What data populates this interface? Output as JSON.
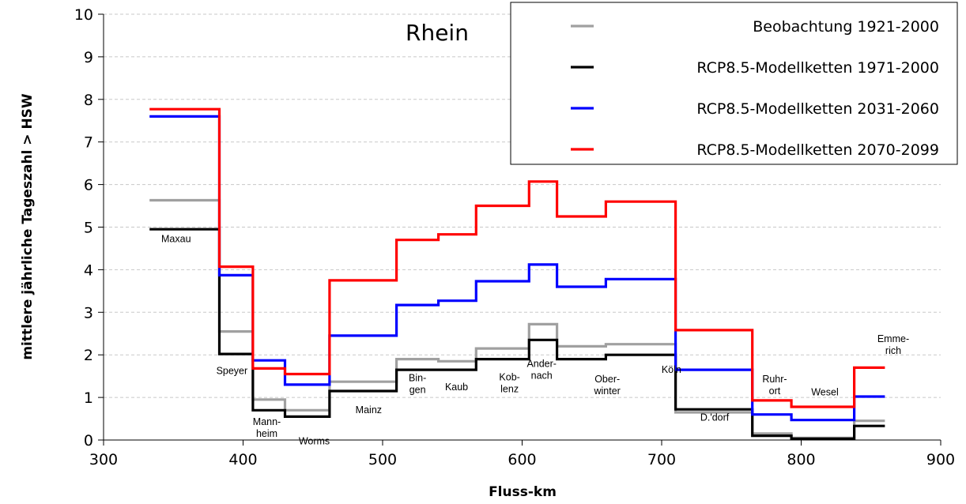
{
  "chart_data": {
    "type": "line",
    "title": "Rhein",
    "xlabel": "Fluss-km",
    "ylabel": "mittlere jährliche Tageszahl > HSW",
    "xlim": [
      300,
      900
    ],
    "ylim": [
      0,
      10
    ],
    "x_ticks": [
      "300",
      "400",
      "500",
      "600",
      "700",
      "800",
      "900"
    ],
    "y_ticks": [
      "0",
      "1",
      "2",
      "3",
      "4",
      "5",
      "6",
      "7",
      "8",
      "9",
      "10"
    ],
    "grid": true,
    "legend_position": "top-right",
    "series": [
      {
        "name": "Beobachtung 1921-2000",
        "color": "#a0a0a0",
        "steps": [
          [
            333,
            5.63
          ],
          [
            383,
            2.55
          ],
          [
            407,
            0.95
          ],
          [
            430,
            0.7
          ],
          [
            462,
            1.37
          ],
          [
            510,
            1.9
          ],
          [
            540,
            1.85
          ],
          [
            567,
            2.15
          ],
          [
            605,
            2.72
          ],
          [
            625,
            2.2
          ],
          [
            660,
            2.25
          ],
          [
            710,
            0.65
          ],
          [
            765,
            0.15
          ],
          [
            793,
            0.05
          ],
          [
            838,
            0.45
          ],
          [
            860,
            0.45
          ]
        ]
      },
      {
        "name": "RCP8.5-Modellketten 1971-2000",
        "color": "#000000",
        "steps": [
          [
            333,
            4.95
          ],
          [
            383,
            2.02
          ],
          [
            407,
            0.7
          ],
          [
            430,
            0.55
          ],
          [
            462,
            1.15
          ],
          [
            510,
            1.65
          ],
          [
            540,
            1.65
          ],
          [
            567,
            1.9
          ],
          [
            605,
            2.35
          ],
          [
            625,
            1.9
          ],
          [
            660,
            2.0
          ],
          [
            710,
            0.72
          ],
          [
            765,
            0.1
          ],
          [
            793,
            0.03
          ],
          [
            838,
            0.33
          ],
          [
            860,
            0.33
          ]
        ]
      },
      {
        "name": "RCP8.5-Modellketten 2031-2060",
        "color": "#0000ff",
        "steps": [
          [
            333,
            7.6
          ],
          [
            383,
            3.87
          ],
          [
            407,
            1.87
          ],
          [
            430,
            1.3
          ],
          [
            462,
            2.45
          ],
          [
            510,
            3.17
          ],
          [
            540,
            3.27
          ],
          [
            567,
            3.73
          ],
          [
            605,
            4.12
          ],
          [
            625,
            3.6
          ],
          [
            660,
            3.78
          ],
          [
            710,
            1.65
          ],
          [
            765,
            0.6
          ],
          [
            793,
            0.47
          ],
          [
            838,
            1.02
          ],
          [
            860,
            1.02
          ]
        ]
      },
      {
        "name": "RCP8.5-Modellketten 2070-2099",
        "color": "#ff0000",
        "steps": [
          [
            333,
            7.77
          ],
          [
            383,
            4.07
          ],
          [
            407,
            1.68
          ],
          [
            430,
            1.55
          ],
          [
            462,
            3.75
          ],
          [
            510,
            4.7
          ],
          [
            540,
            4.83
          ],
          [
            567,
            5.5
          ],
          [
            605,
            6.07
          ],
          [
            625,
            5.25
          ],
          [
            660,
            5.6
          ],
          [
            710,
            2.58
          ],
          [
            765,
            0.93
          ],
          [
            793,
            0.78
          ],
          [
            838,
            1.7
          ],
          [
            860,
            1.7
          ]
        ]
      }
    ],
    "annotations": [
      {
        "lines": [
          "Maxau"
        ],
        "x": 352,
        "y": 4.65
      },
      {
        "lines": [
          "Speyer"
        ],
        "x": 392,
        "y": 1.55
      },
      {
        "lines": [
          "Mann-",
          "heim"
        ],
        "x": 417,
        "y": 0.35
      },
      {
        "lines": [
          "Worms"
        ],
        "x": 451,
        "y": -0.1
      },
      {
        "lines": [
          "Mainz"
        ],
        "x": 490,
        "y": 0.63
      },
      {
        "lines": [
          "Bin-",
          "gen"
        ],
        "x": 525,
        "y": 1.38
      },
      {
        "lines": [
          "Kaub"
        ],
        "x": 553,
        "y": 1.17
      },
      {
        "lines": [
          "Kob-",
          "lenz"
        ],
        "x": 591,
        "y": 1.4
      },
      {
        "lines": [
          "Ander-",
          "nach"
        ],
        "x": 614,
        "y": 1.72
      },
      {
        "lines": [
          "Ober-",
          "winter"
        ],
        "x": 661,
        "y": 1.35
      },
      {
        "lines": [
          "Köln"
        ],
        "x": 707,
        "y": 1.58
      },
      {
        "lines": [
          "D.'dorf"
        ],
        "x": 738,
        "y": 0.45
      },
      {
        "lines": [
          "Ruhr-",
          "ort"
        ],
        "x": 781,
        "y": 1.35
      },
      {
        "lines": [
          "Wesel"
        ],
        "x": 817,
        "y": 1.05
      },
      {
        "lines": [
          "Emme-",
          "rich"
        ],
        "x": 866,
        "y": 2.3
      }
    ]
  }
}
